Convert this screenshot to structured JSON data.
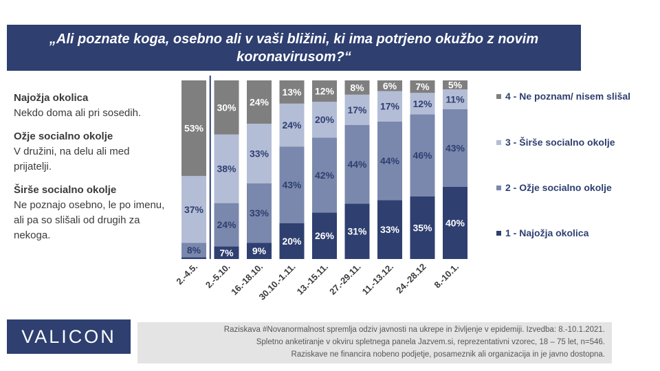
{
  "title": "„Ali poznate koga, osebno ali v vaši bližini, ki ima potrjeno okužbo z novim koronavirusom?“",
  "definitions": [
    {
      "head": "Najožja okolica",
      "text": "Nekdo doma ali pri sosedih."
    },
    {
      "head": "Ožje socialno okolje",
      "text": "V družini, na delu ali med prijatelji."
    },
    {
      "head": "Širše socialno okolje",
      "text": "Ne poznajo osebno, le po imenu, ali pa so slišali od drugih za nekoga."
    }
  ],
  "logo_text": "VALICON",
  "footnote": {
    "line1": "Raziskava #Novanormalnost spremlja odziv javnosti na ukrepe in življenje v epidemiji.  Izvedba: 8.-10.1.2021.",
    "line2": "Spletno anketiranje v okviru spletnega panela Jazvem.si, reprezentativni vzorec, 18 – 75 let, n=546.",
    "line3": "Raziskave ne financira nobeno podjetje, posameznik ali organizacija in je javno dostopna."
  },
  "colors": {
    "s1": "#2e3f70",
    "s2": "#7a88ad",
    "s3": "#b4bdd6",
    "s4": "#7f7f7f",
    "title_bg": "#2e3f70"
  },
  "chart_data": {
    "type": "bar",
    "stacked": true,
    "percent": true,
    "categories": [
      "2.-4.5.",
      "2.-5.10.",
      "16.-18.10.",
      "30.10.-1.11.",
      "13.-15.11.",
      "27.-29.11.",
      "11.-13.12.",
      "24.-28.12",
      "8.-10.1."
    ],
    "series": [
      {
        "name": "1 - Najožja okolica",
        "color": "#2e3f70",
        "values": [
          1,
          7,
          9,
          20,
          26,
          31,
          33,
          35,
          40
        ],
        "labels": [
          "",
          "7%",
          "9%",
          "20%",
          "26%",
          "31%",
          "33%",
          "35%",
          "40%"
        ]
      },
      {
        "name": "2 - Ožje socialno okolje",
        "color": "#7a88ad",
        "values": [
          8,
          24,
          33,
          43,
          42,
          44,
          44,
          46,
          43
        ],
        "labels": [
          "8%",
          "24%",
          "33%",
          "43%",
          "42%",
          "44%",
          "44%",
          "46%",
          "43%"
        ]
      },
      {
        "name": "3 - Širše socialno okolje",
        "color": "#b4bdd6",
        "values": [
          37,
          38,
          33,
          24,
          20,
          17,
          17,
          12,
          11
        ],
        "labels": [
          "37%",
          "38%",
          "33%",
          "24%",
          "20%",
          "17%",
          "17%",
          "12%",
          "11%"
        ]
      },
      {
        "name": "4 - Ne poznam/ nisem slišal",
        "color": "#7f7f7f",
        "values": [
          53,
          30,
          24,
          13,
          12,
          8,
          6,
          7,
          5
        ],
        "labels": [
          "53%",
          "30%",
          "24%",
          "13%",
          "12%",
          "8%",
          "6%",
          "7%",
          "5%"
        ]
      }
    ],
    "legend_position": "right",
    "ylim": [
      0,
      100
    ]
  }
}
